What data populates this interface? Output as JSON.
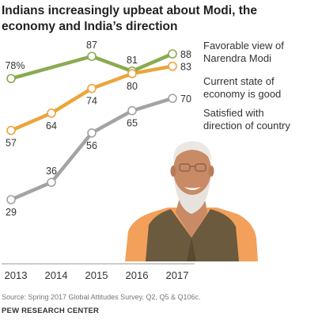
{
  "chart_data": {
    "type": "line",
    "title": "Indians increasingly upbeat about Modi, the economy and India’s direction",
    "categories": [
      "2013",
      "2014",
      "2015",
      "2016",
      "2017"
    ],
    "ylim": [
      20,
      95
    ],
    "grid": false,
    "legend": "right, at line ends",
    "series": [
      {
        "name": "Favorable view of Narendra Modi",
        "legend_lines": [
          "Favorable view of",
          "Narendra Modi"
        ],
        "color": "#8aab4f",
        "values": [
          78,
          null,
          87,
          81,
          88
        ],
        "labels": [
          "78%",
          "",
          "87",
          "81",
          "88"
        ]
      },
      {
        "name": "Current state of economy is good",
        "legend_lines": [
          "Current state of",
          "economy is good"
        ],
        "color": "#eba53a",
        "values": [
          57,
          64,
          74,
          80,
          83
        ],
        "labels": [
          "57",
          "64",
          "74",
          "80",
          "83"
        ]
      },
      {
        "name": "Satisfied with direction of country",
        "legend_lines": [
          "Satisfied with",
          "direction of country"
        ],
        "color": "#a3a3a3",
        "values": [
          29,
          36,
          56,
          65,
          70
        ],
        "labels": [
          "29",
          "36",
          "56",
          "65",
          "70"
        ]
      }
    ]
  },
  "source": "Source: Spring 2017 Global Attitudes Survey. Q2, Q5 & Q106c.",
  "org": "PEW RESEARCH CENTER",
  "photo": {
    "subject": "portrait-photo-icon",
    "colors": {
      "kurta": "#f2a05a",
      "vest": "#6b5a3e",
      "skin": "#c98a66",
      "hair": "#e6e3df"
    }
  }
}
